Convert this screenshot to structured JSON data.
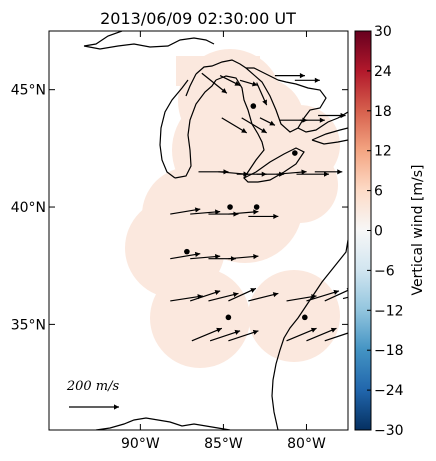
{
  "chart_data": {
    "type": "vector-map",
    "title": "2013/06/09 02:30:00 UT",
    "colorbar": {
      "label": "Vertical wind [m/s]",
      "ticks": [
        30,
        24,
        18,
        12,
        6,
        0,
        -6,
        -12,
        -18,
        -24,
        -30
      ],
      "vmin": -30,
      "vmax": 30,
      "colormap": "red-white-blue",
      "top_color": "#67001f",
      "bottom_color": "#053061",
      "mid_color": "#f7f7f7"
    },
    "lon_range": [
      -95.5,
      -77.5
    ],
    "lat_range": [
      30.5,
      47.5
    ],
    "x_ticks": [
      {
        "lon": -90,
        "label": "90°W"
      },
      {
        "lon": -85,
        "label": "85°W"
      },
      {
        "lon": -80,
        "label": "80°W"
      }
    ],
    "y_ticks": [
      {
        "lat": 45,
        "label": "45°N"
      },
      {
        "lat": 40,
        "label": "40°N"
      },
      {
        "lat": 35,
        "label": "35°N"
      }
    ],
    "field_value": 3,
    "field_color": "#fbe8de",
    "stations": [
      {
        "lon": -83.2,
        "lat": 44.3
      },
      {
        "lon": -80.7,
        "lat": 42.3
      },
      {
        "lon": -84.6,
        "lat": 40.0
      },
      {
        "lon": -83.0,
        "lat": 40.0
      },
      {
        "lon": -87.2,
        "lat": 38.1
      },
      {
        "lon": -84.7,
        "lat": 35.3
      },
      {
        "lon": -80.1,
        "lat": 35.3
      }
    ],
    "reference_vector": {
      "label": "200 m/s",
      "value": 200
    },
    "vectors": [
      {
        "lon": -86.3,
        "lat": 45.7,
        "u": 100,
        "v": -80
      },
      {
        "lon": -85.2,
        "lat": 45.6,
        "u": 80,
        "v": -40
      },
      {
        "lon": -84.0,
        "lat": 45.4,
        "u": 70,
        "v": -20
      },
      {
        "lon": -83.0,
        "lat": 45.3,
        "u": 40,
        "v": -90
      },
      {
        "lon": -81.9,
        "lat": 45.6,
        "u": 120,
        "v": 0
      },
      {
        "lon": -80.7,
        "lat": 45.4,
        "u": 100,
        "v": 0
      },
      {
        "lon": -85.1,
        "lat": 43.8,
        "u": 100,
        "v": -60
      },
      {
        "lon": -83.9,
        "lat": 43.8,
        "u": 100,
        "v": -60
      },
      {
        "lon": -82.8,
        "lat": 43.8,
        "u": 60,
        "v": -30
      },
      {
        "lon": -81.6,
        "lat": 43.7,
        "u": 110,
        "v": 0
      },
      {
        "lon": -80.4,
        "lat": 43.7,
        "u": 100,
        "v": 0
      },
      {
        "lon": -79.3,
        "lat": 43.9,
        "u": 110,
        "v": 0
      },
      {
        "lon": -86.5,
        "lat": 41.5,
        "u": 120,
        "v": 0
      },
      {
        "lon": -85.3,
        "lat": 41.5,
        "u": 120,
        "v": -10
      },
      {
        "lon": -84.2,
        "lat": 41.4,
        "u": 120,
        "v": 0
      },
      {
        "lon": -83.0,
        "lat": 41.4,
        "u": 110,
        "v": 0
      },
      {
        "lon": -81.8,
        "lat": 41.4,
        "u": 120,
        "v": 10
      },
      {
        "lon": -80.6,
        "lat": 41.4,
        "u": 130,
        "v": 0
      },
      {
        "lon": -79.5,
        "lat": 41.5,
        "u": 110,
        "v": 0
      },
      {
        "lon": -88.2,
        "lat": 39.7,
        "u": 120,
        "v": 20
      },
      {
        "lon": -87.0,
        "lat": 39.7,
        "u": 120,
        "v": 10
      },
      {
        "lon": -85.9,
        "lat": 39.7,
        "u": 120,
        "v": 0
      },
      {
        "lon": -84.7,
        "lat": 39.7,
        "u": 120,
        "v": 10
      },
      {
        "lon": -83.5,
        "lat": 39.6,
        "u": 120,
        "v": 0
      },
      {
        "lon": -88.2,
        "lat": 37.8,
        "u": 120,
        "v": 20
      },
      {
        "lon": -87.0,
        "lat": 37.8,
        "u": 120,
        "v": 10
      },
      {
        "lon": -85.9,
        "lat": 37.8,
        "u": 110,
        "v": 0
      },
      {
        "lon": -84.7,
        "lat": 37.8,
        "u": 120,
        "v": 10
      },
      {
        "lon": -88.2,
        "lat": 36.0,
        "u": 130,
        "v": 20
      },
      {
        "lon": -87.0,
        "lat": 36.0,
        "u": 120,
        "v": 40
      },
      {
        "lon": -85.9,
        "lat": 36.0,
        "u": 120,
        "v": 30
      },
      {
        "lon": -84.7,
        "lat": 36.0,
        "u": 110,
        "v": 50
      },
      {
        "lon": -83.5,
        "lat": 36.0,
        "u": 120,
        "v": 30
      },
      {
        "lon": -81.2,
        "lat": 36.0,
        "u": 120,
        "v": 20
      },
      {
        "lon": -80.0,
        "lat": 36.0,
        "u": 130,
        "v": 40
      },
      {
        "lon": -78.9,
        "lat": 36.0,
        "u": 110,
        "v": 50
      },
      {
        "lon": -77.8,
        "lat": 36.1,
        "u": 120,
        "v": 30
      },
      {
        "lon": -86.9,
        "lat": 34.3,
        "u": 120,
        "v": 50
      },
      {
        "lon": -85.8,
        "lat": 34.3,
        "u": 120,
        "v": 40
      },
      {
        "lon": -84.7,
        "lat": 34.3,
        "u": 120,
        "v": 40
      },
      {
        "lon": -81.2,
        "lat": 34.3,
        "u": 120,
        "v": 50
      },
      {
        "lon": -80.0,
        "lat": 34.3,
        "u": 120,
        "v": 50
      },
      {
        "lon": -78.9,
        "lat": 34.3,
        "u": 120,
        "v": 40
      }
    ]
  }
}
